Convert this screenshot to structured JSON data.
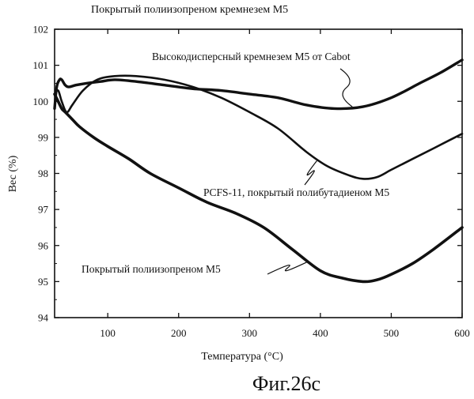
{
  "chart_data": {
    "type": "line",
    "title": "Покрытый полиизопреном кремнезем М5",
    "xlabel": "Температура (°С)",
    "ylabel": "Вес (%)",
    "xlim": [
      25,
      600
    ],
    "ylim": [
      94,
      102
    ],
    "x_ticks": [
      "100",
      "200",
      "300",
      "400",
      "500",
      "600"
    ],
    "x_tick_values": [
      100,
      200,
      300,
      400,
      500,
      600
    ],
    "y_ticks": [
      "94",
      "95",
      "96",
      "97",
      "98",
      "99",
      "100",
      "101",
      "102"
    ],
    "y_tick_values": [
      94,
      95,
      96,
      97,
      98,
      99,
      100,
      101,
      102
    ],
    "grid": false,
    "series": [
      {
        "name": "Высокодисперсный кремнезем М5 от Cabot",
        "color": "#111111",
        "x": [
          25,
          28,
          32,
          35,
          40,
          45,
          55,
          70,
          90,
          110,
          140,
          180,
          220,
          260,
          300,
          340,
          380,
          420,
          460,
          500,
          540,
          570,
          600
        ],
        "y": [
          99.8,
          100.4,
          100.6,
          100.6,
          100.45,
          100.4,
          100.45,
          100.5,
          100.55,
          100.6,
          100.55,
          100.45,
          100.35,
          100.3,
          100.2,
          100.1,
          99.9,
          99.8,
          99.85,
          100.1,
          100.5,
          100.8,
          101.15
        ]
      },
      {
        "name": "PCFS-11, покрытый полибутадиеном М5",
        "color": "#111111",
        "x": [
          25,
          30,
          35,
          42,
          50,
          65,
          85,
          110,
          140,
          180,
          220,
          260,
          300,
          340,
          380,
          410,
          440,
          460,
          480,
          500,
          530,
          560,
          600
        ],
        "y": [
          100.2,
          100.3,
          100.0,
          99.7,
          99.9,
          100.3,
          100.6,
          100.7,
          100.7,
          100.6,
          100.4,
          100.1,
          99.7,
          99.25,
          98.6,
          98.2,
          97.95,
          97.85,
          97.9,
          98.1,
          98.4,
          98.7,
          99.1
        ]
      },
      {
        "name": "Покрытый полиизопреном М5",
        "color": "#111111",
        "x": [
          25,
          30,
          35,
          40,
          50,
          60,
          80,
          100,
          130,
          160,
          200,
          240,
          280,
          320,
          360,
          400,
          430,
          460,
          480,
          500,
          530,
          560,
          600
        ],
        "y": [
          100.2,
          100.0,
          99.8,
          99.7,
          99.5,
          99.3,
          99.0,
          98.75,
          98.4,
          98.0,
          97.6,
          97.2,
          96.9,
          96.5,
          95.9,
          95.3,
          95.1,
          95.0,
          95.05,
          95.2,
          95.5,
          95.9,
          96.5
        ]
      }
    ],
    "annotations": [
      {
        "text": "Высокодисперсный кремнезем М5 от Cabot",
        "series": 0,
        "x": 445,
        "y": 99.85
      },
      {
        "text": "PCFS-11, покрытый полибутадиеном М5",
        "series": 1,
        "x": 395,
        "y": 98.35
      },
      {
        "text": "Покрытый полиизопреном М5",
        "series": 2,
        "x": 382,
        "y": 95.55
      }
    ]
  },
  "figure_caption": "Фиг.26с"
}
